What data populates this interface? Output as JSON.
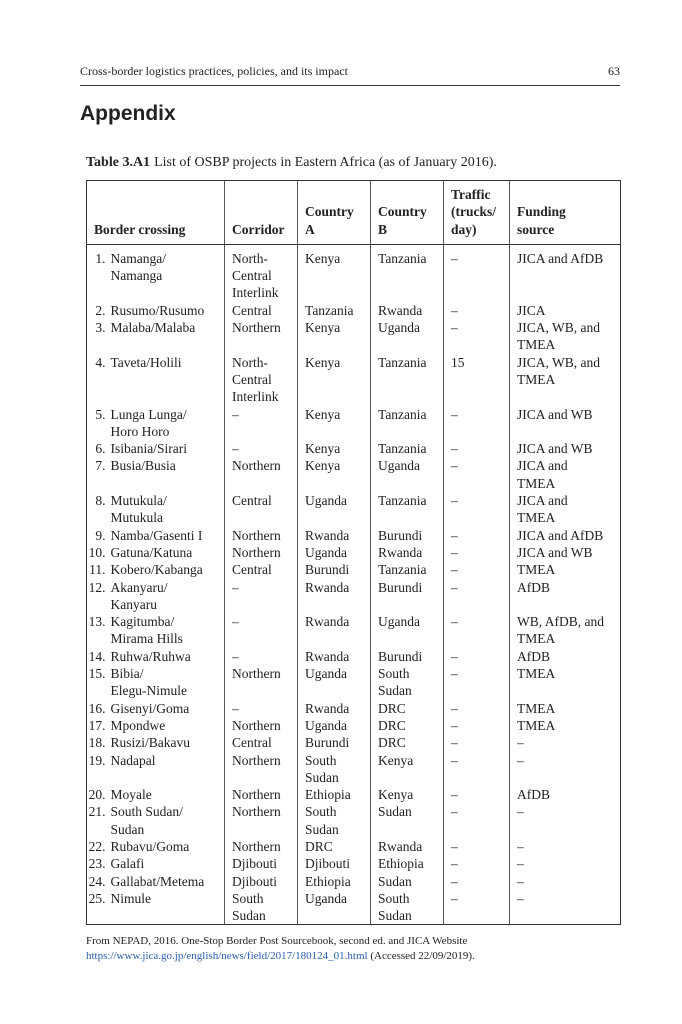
{
  "header": {
    "running_title": "Cross-border logistics practices, policies, and its impact",
    "page_number": "63"
  },
  "heading": "Appendix",
  "table": {
    "caption_label": "Table 3.A1",
    "caption_text": "List of OSBP projects in Eastern Africa (as of January 2016).",
    "columns": [
      "Border crossing",
      "Corridor",
      "Country\nA",
      "Country\nB",
      "Traffic\n(trucks/\nday)",
      "Funding\nsource"
    ],
    "rows": [
      [
        "1.",
        "Namanga/\nNamanga",
        "North-\nCentral\nInterlink",
        "Kenya",
        "Tanzania",
        "–",
        "JICA and AfDB"
      ],
      [
        "2.",
        "Rusumo/Rusumo",
        "Central",
        "Tanzania",
        "Rwanda",
        "–",
        "JICA"
      ],
      [
        "3.",
        "Malaba/Malaba",
        "Northern",
        "Kenya",
        "Uganda",
        "–",
        "JICA, WB, and\nTMEA"
      ],
      [
        "4.",
        "Taveta/Holili",
        "North-\nCentral\nInterlink",
        "Kenya",
        "Tanzania",
        "15",
        "JICA, WB, and\nTMEA"
      ],
      [
        "5.",
        "Lunga Lunga/\nHoro Horo",
        "–",
        "Kenya",
        "Tanzania",
        "–",
        "JICA and WB"
      ],
      [
        "6.",
        "Isibania/Sirari",
        "–",
        "Kenya",
        "Tanzania",
        "–",
        "JICA and WB"
      ],
      [
        "7.",
        "Busia/Busia",
        "Northern",
        "Kenya",
        "Uganda",
        "–",
        "JICA and\nTMEA"
      ],
      [
        "8.",
        "Mutukula/\nMutukula",
        "Central",
        "Uganda",
        "Tanzania",
        "–",
        "JICA and\nTMEA"
      ],
      [
        "9.",
        "Namba/Gasenti I",
        "Northern",
        "Rwanda",
        "Burundi",
        "–",
        "JICA and AfDB"
      ],
      [
        "10.",
        "Gatuna/Katuna",
        "Northern",
        "Uganda",
        "Rwanda",
        "–",
        "JICA and WB"
      ],
      [
        "11.",
        "Kobero/Kabanga",
        "Central",
        "Burundi",
        "Tanzania",
        "–",
        "TMEA"
      ],
      [
        "12.",
        "Akanyaru/\nKanyaru",
        "–",
        "Rwanda",
        "Burundi",
        "–",
        "AfDB"
      ],
      [
        "13.",
        "Kagitumba/\nMirama Hills",
        "–",
        "Rwanda",
        "Uganda",
        "–",
        "WB, AfDB, and\nTMEA"
      ],
      [
        "14.",
        "Ruhwa/Ruhwa",
        "–",
        "Rwanda",
        "Burundi",
        "–",
        "AfDB"
      ],
      [
        "15.",
        "Bibia/\nElegu-Nimule",
        "Northern",
        "Uganda",
        "South\nSudan",
        "–",
        "TMEA"
      ],
      [
        "16.",
        "Gisenyi/Goma",
        "–",
        "Rwanda",
        "DRC",
        "–",
        "TMEA"
      ],
      [
        "17.",
        "Mpondwe",
        "Northern",
        "Uganda",
        "DRC",
        "–",
        "TMEA"
      ],
      [
        "18.",
        "Rusizi/Bakavu",
        "Central",
        "Burundi",
        "DRC",
        "–",
        "–"
      ],
      [
        "19.",
        "Nadapal",
        "Northern",
        "South\nSudan",
        "Kenya",
        "–",
        "–"
      ],
      [
        "20.",
        "Moyale",
        "Northern",
        "Ethiopia",
        "Kenya",
        "–",
        "AfDB"
      ],
      [
        "21.",
        "South Sudan/\nSudan",
        "Northern",
        "South\nSudan",
        "Sudan",
        "–",
        "–"
      ],
      [
        "22.",
        "Rubavu/Goma",
        "Northern",
        "DRC",
        "Rwanda",
        "–",
        "–"
      ],
      [
        "23.",
        "Galafi",
        "Djibouti",
        "Djibouti",
        "Ethiopia",
        "–",
        "–"
      ],
      [
        "24.",
        "Gallabat/Metema",
        "Djibouti",
        "Ethiopia",
        "Sudan",
        "–",
        "–"
      ],
      [
        "25.",
        "Nimule",
        "South\nSudan",
        "Uganda",
        "South\nSudan",
        "–",
        "–"
      ]
    ]
  },
  "source": {
    "text": "From NEPAD, 2016. One-Stop Border Post Sourcebook, second ed. and JICA Website",
    "link": "https://www.jica.go.jp/english/news/field/2017/180124_01.html",
    "accessed": "(Accessed 22/09/2019)."
  }
}
